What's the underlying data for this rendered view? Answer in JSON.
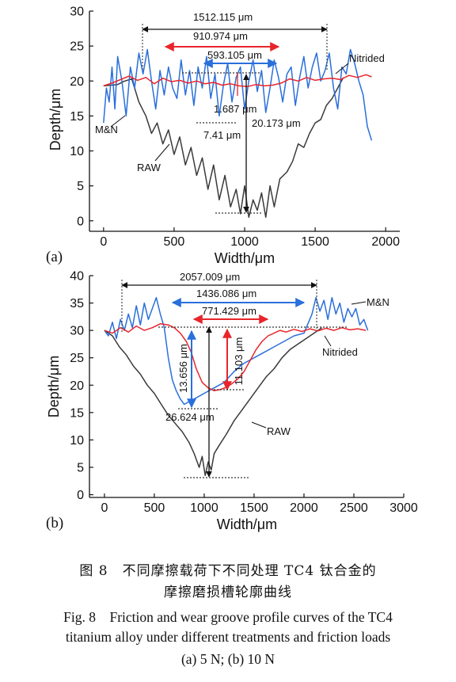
{
  "chart_data": [
    {
      "type": "line",
      "panel_label": "(a)",
      "xlabel": "Width/μm",
      "ylabel": "Depth/μm",
      "xlim": [
        -100,
        2100
      ],
      "ylim": [
        -1.5,
        30
      ],
      "xticks": [
        0,
        500,
        1000,
        1500,
        2000
      ],
      "yticks": [
        0,
        5,
        10,
        15,
        20,
        25,
        30
      ],
      "series": [
        {
          "name": "RAW",
          "color": "#3a3a3a",
          "x": [
            0,
            100,
            150,
            200,
            250,
            300,
            340,
            380,
            420,
            460,
            500,
            540,
            580,
            620,
            660,
            700,
            740,
            780,
            820,
            860,
            900,
            940,
            970,
            1000,
            1030,
            1060,
            1090,
            1120,
            1150,
            1180,
            1210,
            1250,
            1300,
            1340,
            1380,
            1420,
            1460,
            1500,
            1540,
            1580,
            1620,
            1660,
            1700
          ],
          "y": [
            19.3,
            19.5,
            20,
            20.3,
            17,
            15,
            12.5,
            14,
            11,
            13,
            9.5,
            12,
            8,
            10.5,
            6.5,
            9,
            4.5,
            8,
            3,
            6.5,
            2,
            4.5,
            1,
            5,
            0.5,
            3,
            1.5,
            4,
            0.5,
            5,
            2,
            6,
            7,
            8.5,
            11,
            10.5,
            12.5,
            14,
            14.5,
            16.5,
            17.5,
            19,
            20.5
          ]
        },
        {
          "name": "M&N",
          "color": "#2a6fdb",
          "x": [
            0,
            20,
            40,
            60,
            80,
            100,
            130,
            160,
            190,
            220,
            250,
            280,
            310,
            340,
            370,
            400,
            430,
            460,
            490,
            520,
            550,
            580,
            610,
            640,
            670,
            700,
            730,
            760,
            790,
            820,
            850,
            880,
            910,
            940,
            970,
            1000,
            1030,
            1060,
            1090,
            1120,
            1150,
            1180,
            1210,
            1240,
            1270,
            1300,
            1330,
            1360,
            1390,
            1420,
            1450,
            1480,
            1510,
            1540,
            1570,
            1600,
            1630,
            1660,
            1690,
            1720,
            1750,
            1780,
            1810,
            1840,
            1870,
            1900
          ],
          "y": [
            14,
            19,
            17,
            22,
            16,
            23.5,
            20,
            15,
            22,
            19,
            24,
            21,
            24.5,
            20,
            16,
            21.5,
            18,
            22,
            19,
            17.5,
            23,
            18,
            21.5,
            16.5,
            22,
            19,
            23.5,
            17.5,
            21,
            15,
            19.5,
            22.5,
            17,
            20.5,
            22,
            16,
            20,
            23,
            18.5,
            21.5,
            15.5,
            19,
            23,
            20.5,
            17,
            21,
            22,
            16.5,
            20.5,
            23.5,
            19,
            22,
            24,
            20,
            21.5,
            24,
            19,
            16,
            22,
            21,
            24.5,
            22.5,
            20,
            18,
            13.5,
            11.5
          ]
        },
        {
          "name": "Nitrided",
          "color": "#e8252b",
          "x": [
            0,
            60,
            120,
            180,
            240,
            300,
            360,
            420,
            480,
            540,
            600,
            660,
            720,
            780,
            840,
            900,
            960,
            1020,
            1080,
            1140,
            1200,
            1260,
            1320,
            1380,
            1440,
            1500,
            1560,
            1620,
            1680,
            1740,
            1800,
            1860,
            1900
          ],
          "y": [
            19.3,
            19.7,
            20.2,
            20.7,
            20.1,
            20.5,
            19.6,
            20.4,
            19.9,
            20.1,
            19.7,
            20,
            19.6,
            19.8,
            19.4,
            19.6,
            19.3,
            19.2,
            19.5,
            19.3,
            19.4,
            19.7,
            20.3,
            20,
            20.5,
            20.1,
            20.3,
            20.4,
            20.2,
            20.8,
            20.5,
            20.9,
            20.6
          ]
        }
      ],
      "annotations": [
        "1512.115 μm",
        "910.974 μm",
        "593.105 μm",
        "1.687 μm",
        "7.41 μm",
        "20.173 μm"
      ]
    },
    {
      "type": "line",
      "panel_label": "(b)",
      "xlabel": "Width/μm",
      "ylabel": "Depth/μm",
      "xlim": [
        -150,
        3000
      ],
      "ylim": [
        -0.5,
        40
      ],
      "xticks": [
        0,
        500,
        1000,
        1500,
        2000,
        2500,
        3000
      ],
      "yticks": [
        0,
        5,
        10,
        15,
        20,
        25,
        30,
        35,
        40
      ],
      "series": [
        {
          "name": "RAW",
          "color": "#3a3a3a",
          "x": [
            0,
            80,
            150,
            220,
            290,
            360,
            430,
            500,
            570,
            640,
            710,
            780,
            850,
            900,
            950,
            980,
            1010,
            1040,
            1070,
            1100,
            1150,
            1220,
            1300,
            1380,
            1460,
            1540,
            1620,
            1700,
            1780,
            1860,
            1940,
            2020,
            2100,
            2180
          ],
          "y": [
            30,
            29,
            27,
            25.5,
            23.5,
            22,
            20,
            18.5,
            16.5,
            14.5,
            13,
            11.5,
            9.5,
            7.5,
            5,
            7,
            3.5,
            6,
            4.5,
            7.5,
            9,
            11,
            13.5,
            15.5,
            17.5,
            19.5,
            21.5,
            23,
            25,
            26.5,
            27.5,
            28.5,
            29.5,
            30.5
          ]
        },
        {
          "name": "M&N",
          "color": "#2a6fdb",
          "x": [
            0,
            40,
            80,
            120,
            160,
            200,
            240,
            280,
            320,
            360,
            400,
            440,
            480,
            520,
            560,
            600,
            640,
            680,
            720,
            760,
            800,
            900,
            1000,
            1100,
            1200,
            1300,
            1400,
            1500,
            1600,
            1700,
            1800,
            1900,
            2000,
            2080,
            2120,
            2160,
            2200,
            2240,
            2280,
            2320,
            2360,
            2400,
            2440,
            2480,
            2520,
            2560,
            2600,
            2640
          ],
          "y": [
            30,
            29,
            31.5,
            28.5,
            32,
            30,
            33,
            30.5,
            34.5,
            31,
            35,
            32,
            34,
            36,
            33,
            30.5,
            25,
            21,
            19,
            17.5,
            16.5,
            17.5,
            18.5,
            19.5,
            20.5,
            22.5,
            24,
            25,
            26,
            27,
            28,
            29,
            29.5,
            33,
            36,
            33.5,
            35.5,
            32,
            36,
            33,
            35,
            31.5,
            34,
            32.5,
            34,
            31,
            32,
            30
          ]
        },
        {
          "name": "Nitrided",
          "color": "#e8252b",
          "x": [
            0,
            80,
            160,
            240,
            320,
            400,
            480,
            560,
            640,
            700,
            760,
            820,
            870,
            920,
            980,
            1040,
            1100,
            1160,
            1220,
            1280,
            1340,
            1400,
            1460,
            1520,
            1580,
            1640,
            1700,
            1760,
            1820,
            1900,
            1980,
            2060,
            2140,
            2220,
            2300,
            2380,
            2460,
            2540,
            2620
          ],
          "y": [
            30,
            29.5,
            30.5,
            29.7,
            30.8,
            30,
            30.5,
            31.2,
            31,
            30.5,
            29.5,
            28,
            26,
            23,
            20.5,
            19.5,
            19,
            19.2,
            19.6,
            20.3,
            21.2,
            22.5,
            24.5,
            26.5,
            28,
            29,
            29.5,
            30,
            29.7,
            30.2,
            29.8,
            30.3,
            29.9,
            30.4,
            30,
            30.5,
            30.1,
            30.3,
            30
          ]
        }
      ],
      "annotations": [
        "2057.009 μm",
        "1436.086 μm",
        "771.429 μm",
        "13.656 μm",
        "11.103 μm",
        "26.624 μm"
      ]
    }
  ],
  "caption": {
    "cn_line1": "图 8　不同摩擦载荷下不同处理 TC4 钛合金的",
    "cn_line2": "摩擦磨损槽轮廓曲线",
    "en_line1": "Fig. 8　Friction and wear groove profile curves of the TC4",
    "en_line2": "titanium alloy under different treatments and friction loads",
    "en_line3": "(a) 5 N; (b) 10 N"
  }
}
